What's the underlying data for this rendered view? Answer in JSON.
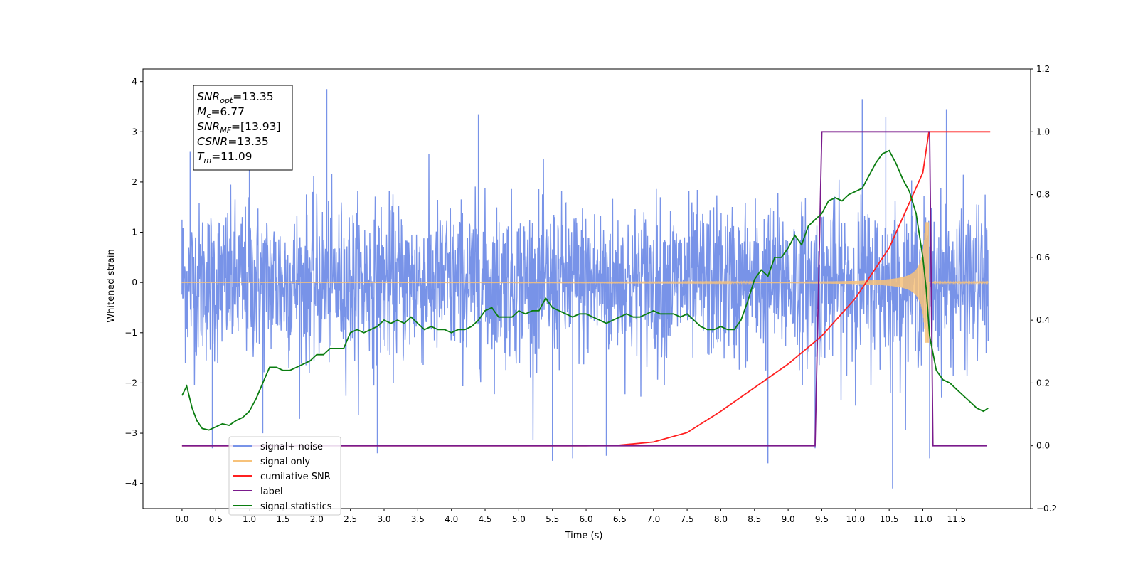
{
  "chart_data": {
    "type": "line",
    "xlabel": "Time (s)",
    "ylabel": "Whitened strain",
    "xlim": [
      -0.58,
      12.6
    ],
    "ylim": [
      -4.5,
      4.25
    ],
    "y2lim": [
      -0.2,
      1.2
    ],
    "x_ticks": [
      "0.0",
      "0.5",
      "1.0",
      "1.5",
      "2.0",
      "2.5",
      "3.0",
      "3.5",
      "4.0",
      "4.5",
      "5.0",
      "5.5",
      "6.0",
      "6.5",
      "7.0",
      "7.5",
      "8.0",
      "8.5",
      "9.0",
      "9.5",
      "10.0",
      "10.5",
      "11.0",
      "11.5"
    ],
    "y_ticks": [
      "4",
      "3",
      "2",
      "1",
      "0",
      "−1",
      "−2",
      "−3",
      "−4"
    ],
    "y2_ticks": [
      "1.2",
      "1.0",
      "0.8",
      "0.6",
      "0.4",
      "0.2",
      "0.0",
      "−0.2"
    ],
    "grid": false,
    "legend_position": "lower-left",
    "annotation": {
      "lines": [
        {
          "sym": "SNR",
          "sub": "opt",
          "value": "=13.35"
        },
        {
          "sym": "M",
          "sub": "c",
          "value": "=6.77"
        },
        {
          "sym": "SNR",
          "sub": "MF",
          "value": "=[13.93]"
        },
        {
          "sym": "CSNR",
          "sub": "",
          "value": "=13.35"
        },
        {
          "sym": "T",
          "sub": "m",
          "value": "=11.09"
        }
      ]
    },
    "series": [
      {
        "name": "signal+ noise",
        "color": "#7893e8",
        "axis": "left",
        "kind": "noise",
        "noise_std": 0.78,
        "peaks": [
          [
            0.0,
            1.25
          ],
          [
            0.12,
            2.6
          ],
          [
            0.45,
            -3.3
          ],
          [
            1.0,
            2.7
          ],
          [
            1.2,
            -3.0
          ],
          [
            2.15,
            3.85
          ],
          [
            2.9,
            -3.4
          ],
          [
            4.4,
            3.35
          ],
          [
            5.5,
            -3.55
          ],
          [
            5.8,
            -3.5
          ],
          [
            6.3,
            -3.45
          ],
          [
            8.7,
            -3.6
          ],
          [
            9.4,
            -3.3
          ],
          [
            10.1,
            3.65
          ],
          [
            10.45,
            3.3
          ],
          [
            10.55,
            -4.1
          ],
          [
            11.1,
            -3.5
          ],
          [
            11.35,
            3.45
          ]
        ]
      },
      {
        "name": "signal only",
        "color": "#f7c27a",
        "axis": "left",
        "kind": "chirp",
        "t_merge": 11.09,
        "amplitude_at_merge": 1.2
      },
      {
        "name": "cumilative SNR",
        "color": "#ff2020",
        "axis": "right",
        "x": [
          0.0,
          6.0,
          6.5,
          7.0,
          7.5,
          8.0,
          8.5,
          9.0,
          9.5,
          10.0,
          10.5,
          11.0,
          11.09,
          12.0
        ],
        "values": [
          0.0,
          0.0,
          0.002,
          0.012,
          0.042,
          0.11,
          0.185,
          0.26,
          0.35,
          0.47,
          0.63,
          0.87,
          1.0,
          1.0
        ]
      },
      {
        "name": "label",
        "color": "#7a1a8c",
        "axis": "right",
        "x": [
          0.0,
          9.4,
          9.5,
          11.1,
          11.15,
          11.95
        ],
        "values": [
          0.0,
          0.0,
          1.0,
          1.0,
          0.0,
          0.0
        ]
      },
      {
        "name": "signal statistics",
        "color": "#0a7d10",
        "axis": "right",
        "x": [
          0.0,
          0.07,
          0.15,
          0.22,
          0.3,
          0.4,
          0.5,
          0.6,
          0.7,
          0.8,
          0.9,
          1.0,
          1.1,
          1.2,
          1.3,
          1.4,
          1.5,
          1.6,
          1.7,
          1.8,
          1.9,
          2.0,
          2.1,
          2.2,
          2.3,
          2.4,
          2.5,
          2.6,
          2.7,
          2.8,
          2.9,
          3.0,
          3.1,
          3.2,
          3.3,
          3.4,
          3.5,
          3.6,
          3.7,
          3.8,
          3.9,
          4.0,
          4.1,
          4.2,
          4.3,
          4.4,
          4.5,
          4.6,
          4.7,
          4.8,
          4.9,
          5.0,
          5.1,
          5.2,
          5.3,
          5.4,
          5.5,
          5.6,
          5.7,
          5.8,
          5.9,
          6.0,
          6.1,
          6.2,
          6.3,
          6.4,
          6.5,
          6.6,
          6.7,
          6.8,
          6.9,
          7.0,
          7.1,
          7.2,
          7.3,
          7.4,
          7.5,
          7.6,
          7.7,
          7.8,
          7.9,
          8.0,
          8.1,
          8.2,
          8.3,
          8.4,
          8.5,
          8.6,
          8.7,
          8.8,
          8.9,
          9.0,
          9.1,
          9.2,
          9.3,
          9.4,
          9.5,
          9.6,
          9.7,
          9.8,
          9.9,
          10.0,
          10.1,
          10.2,
          10.3,
          10.4,
          10.5,
          10.6,
          10.7,
          10.8,
          10.9,
          11.0,
          11.05,
          11.1,
          11.2,
          11.3,
          11.4,
          11.5,
          11.6,
          11.7,
          11.8,
          11.9,
          11.97
        ],
        "values": [
          0.16,
          0.19,
          0.12,
          0.08,
          0.055,
          0.05,
          0.06,
          0.07,
          0.065,
          0.08,
          0.09,
          0.11,
          0.15,
          0.2,
          0.25,
          0.25,
          0.24,
          0.24,
          0.25,
          0.26,
          0.27,
          0.29,
          0.29,
          0.31,
          0.31,
          0.31,
          0.36,
          0.37,
          0.36,
          0.37,
          0.38,
          0.4,
          0.39,
          0.4,
          0.39,
          0.41,
          0.39,
          0.37,
          0.38,
          0.37,
          0.37,
          0.36,
          0.37,
          0.37,
          0.38,
          0.4,
          0.43,
          0.44,
          0.41,
          0.41,
          0.41,
          0.43,
          0.42,
          0.43,
          0.43,
          0.47,
          0.44,
          0.43,
          0.42,
          0.41,
          0.42,
          0.42,
          0.41,
          0.4,
          0.39,
          0.4,
          0.41,
          0.42,
          0.41,
          0.41,
          0.42,
          0.43,
          0.42,
          0.42,
          0.42,
          0.41,
          0.42,
          0.4,
          0.38,
          0.37,
          0.37,
          0.38,
          0.37,
          0.37,
          0.4,
          0.46,
          0.53,
          0.56,
          0.54,
          0.6,
          0.6,
          0.63,
          0.67,
          0.64,
          0.7,
          0.72,
          0.74,
          0.78,
          0.79,
          0.78,
          0.8,
          0.81,
          0.82,
          0.86,
          0.9,
          0.93,
          0.94,
          0.9,
          0.85,
          0.81,
          0.74,
          0.6,
          0.5,
          0.35,
          0.24,
          0.21,
          0.2,
          0.18,
          0.16,
          0.14,
          0.12,
          0.11,
          0.12
        ]
      }
    ]
  }
}
